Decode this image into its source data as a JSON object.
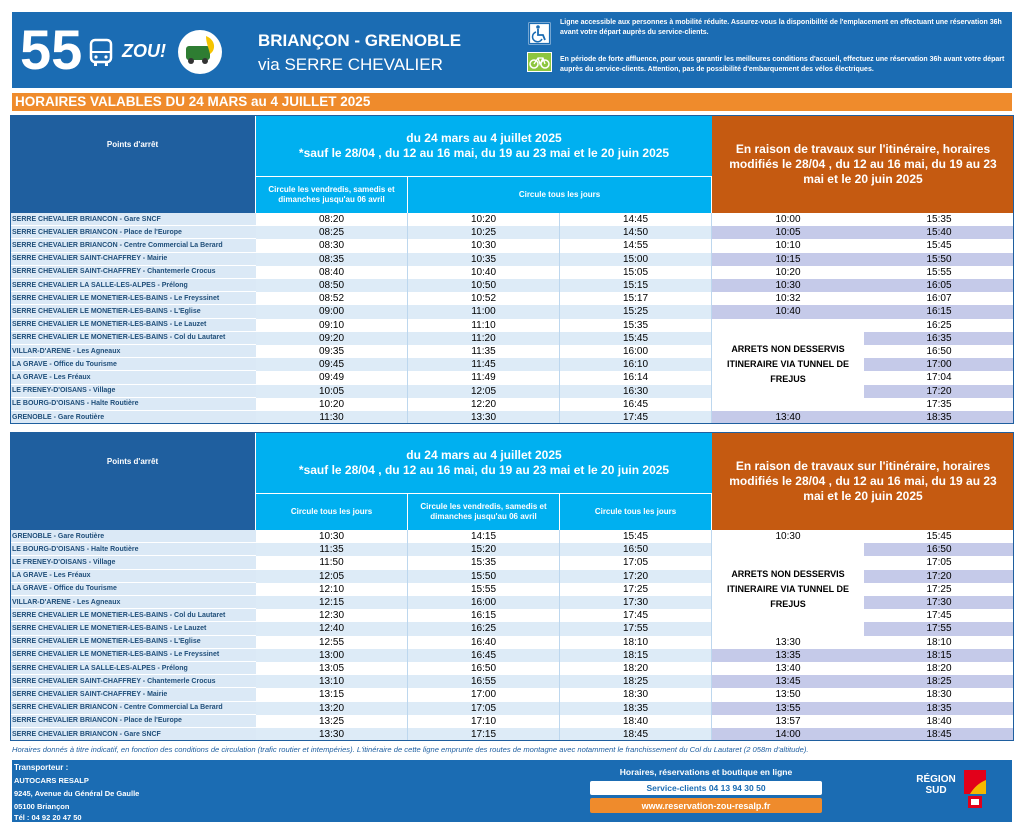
{
  "header": {
    "route_number": "55",
    "brand": "ZOU!",
    "origin_destination": "BRIANÇON - GRENOBLE",
    "via": "via SERRE CHEVALIER",
    "accessibility_notice": "Ligne accessible aux personnes à mobilité réduite. Assurez-vous la disponibilité de l'emplacement en effectuant une réservation 36h avant votre départ auprès du service-clients.",
    "bike_notice": "En période de forte affluence, pour vous garantir les meilleures conditions d'accueil, effectuez une réservation 36h avant votre départ auprès du service-clients. Attention, pas de possibilité d'embarquement des vélos électriques."
  },
  "validity": "HORAIRES VALABLES DU 24 MARS au 4 JUILLET 2025",
  "tables": [
    {
      "stop_header": "Points d'arrêt",
      "period": "du 24 mars au 4 juillet 2025",
      "exceptions": "*sauf le 28/04 , du 12 au 16 mai, du 19 au 23 mai et le 20 juin 2025",
      "works_notice": "En raison de travaux sur l'itinéraire, horaires modifiés le 28/04 , du 12 au 16 mai, du 19 au 23 mai et le 20 juin 2025",
      "column_notes": [
        "Circule les vendredis, samedis et dimanches jusqu'au 06 avril",
        "Circule tous les jours"
      ],
      "not_served": "ARRETS NON DESSERVIS ITINERAIRE VIA TUNNEL DE FREJUS",
      "rows": [
        {
          "stop": "SERRE CHEVALIER BRIANCON - Gare SNCF",
          "times": [
            "08:20",
            "10:20",
            "14:45",
            "10:00",
            "15:35"
          ]
        },
        {
          "stop": "SERRE CHEVALIER BRIANCON - Place de l'Europe",
          "times": [
            "08:25",
            "10:25",
            "14:50",
            "10:05",
            "15:40"
          ]
        },
        {
          "stop": "SERRE CHEVALIER BRIANCON - Centre Commercial La Berard",
          "times": [
            "08:30",
            "10:30",
            "14:55",
            "10:10",
            "15:45"
          ]
        },
        {
          "stop": "SERRE CHEVALIER SAINT-CHAFFREY - Mairie",
          "times": [
            "08:35",
            "10:35",
            "15:00",
            "10:15",
            "15:50"
          ]
        },
        {
          "stop": "SERRE CHEVALIER SAINT-CHAFFREY - Chantemerle Crocus",
          "times": [
            "08:40",
            "10:40",
            "15:05",
            "10:20",
            "15:55"
          ]
        },
        {
          "stop": "SERRE CHEVALIER LA SALLE-LES-ALPES - Prélong",
          "times": [
            "08:50",
            "10:50",
            "15:15",
            "10:30",
            "16:05"
          ]
        },
        {
          "stop": "SERRE CHEVALIER LE MONETIER-LES-BAINS - Le Freyssinet",
          "times": [
            "08:52",
            "10:52",
            "15:17",
            "10:32",
            "16:07"
          ]
        },
        {
          "stop": "SERRE CHEVALIER LE MONETIER-LES-BAINS - L'Eglise",
          "times": [
            "09:00",
            "11:00",
            "15:25",
            "10:40",
            "16:15"
          ]
        },
        {
          "stop": "SERRE CHEVALIER LE MONETIER-LES-BAINS - Le Lauzet",
          "times": [
            "09:10",
            "11:10",
            "15:35",
            null,
            "16:25"
          ]
        },
        {
          "stop": "SERRE CHEVALIER LE MONETIER-LES-BAINS - Col du Lautaret",
          "times": [
            "09:20",
            "11:20",
            "15:45",
            null,
            "16:35"
          ]
        },
        {
          "stop": "VILLAR-D'ARENE - Les Agneaux",
          "times": [
            "09:35",
            "11:35",
            "16:00",
            null,
            "16:50"
          ]
        },
        {
          "stop": "LA GRAVE - Office du Tourisme",
          "times": [
            "09:45",
            "11:45",
            "16:10",
            null,
            "17:00"
          ]
        },
        {
          "stop": "LA GRAVE - Les Fréaux",
          "times": [
            "09:49",
            "11:49",
            "16:14",
            null,
            "17:04"
          ]
        },
        {
          "stop": "LE FRENEY-D'OISANS - Village",
          "times": [
            "10:05",
            "12:05",
            "16:30",
            null,
            "17:20"
          ]
        },
        {
          "stop": "LE BOURG-D'OISANS - Halte Routière",
          "times": [
            "10:20",
            "12:20",
            "16:45",
            null,
            "17:35"
          ]
        },
        {
          "stop": "GRENOBLE - Gare Routière",
          "times": [
            "11:30",
            "13:30",
            "17:45",
            "13:40",
            "18:35"
          ]
        }
      ]
    },
    {
      "stop_header": "Points d'arrêt",
      "period": "du 24 mars au 4 juillet 2025",
      "exceptions": "*sauf le 28/04 , du 12 au 16 mai, du 19 au 23 mai et le 20 juin 2025",
      "works_notice": "En raison de travaux sur l'itinéraire, horaires modifiés le 28/04 , du 12 au 16 mai, du 19 au 23 mai et le 20 juin 2025",
      "column_notes": [
        "Circule tous les jours",
        "Circule les vendredis, samedis et dimanches jusqu'au 06 avril",
        "Circule tous les jours"
      ],
      "not_served": "ARRETS NON DESSERVIS ITINERAIRE VIA TUNNEL DE FREJUS",
      "rows": [
        {
          "stop": "GRENOBLE - Gare Routière",
          "times": [
            "10:30",
            "14:15",
            "15:45",
            "10:30",
            "15:45"
          ]
        },
        {
          "stop": "LE BOURG-D'OISANS - Halte Routière",
          "times": [
            "11:35",
            "15:20",
            "16:50",
            null,
            "16:50"
          ]
        },
        {
          "stop": "LE FRENEY-D'OISANS - Village",
          "times": [
            "11:50",
            "15:35",
            "17:05",
            null,
            "17:05"
          ]
        },
        {
          "stop": "LA GRAVE - Les Fréaux",
          "times": [
            "12:05",
            "15:50",
            "17:20",
            null,
            "17:20"
          ]
        },
        {
          "stop": "LA GRAVE - Office du Tourisme",
          "times": [
            "12:10",
            "15:55",
            "17:25",
            null,
            "17:25"
          ]
        },
        {
          "stop": "VILLAR-D'ARENE - Les Agneaux",
          "times": [
            "12:15",
            "16:00",
            "17:30",
            null,
            "17:30"
          ]
        },
        {
          "stop": "SERRE CHEVALIER LE MONETIER-LES-BAINS - Col du Lautaret",
          "times": [
            "12:30",
            "16:15",
            "17:45",
            null,
            "17:45"
          ]
        },
        {
          "stop": "SERRE CHEVALIER LE MONETIER-LES-BAINS - Le Lauzet",
          "times": [
            "12:40",
            "16:25",
            "17:55",
            null,
            "17:55"
          ]
        },
        {
          "stop": "SERRE CHEVALIER LE MONETIER-LES-BAINS - L'Eglise",
          "times": [
            "12:55",
            "16:40",
            "18:10",
            "13:30",
            "18:10"
          ]
        },
        {
          "stop": "SERRE CHEVALIER LE MONETIER-LES-BAINS - Le Freyssinet",
          "times": [
            "13:00",
            "16:45",
            "18:15",
            "13:35",
            "18:15"
          ]
        },
        {
          "stop": "SERRE CHEVALIER LA SALLE-LES-ALPES - Prélong",
          "times": [
            "13:05",
            "16:50",
            "18:20",
            "13:40",
            "18:20"
          ]
        },
        {
          "stop": "SERRE CHEVALIER SAINT-CHAFFREY - Chantemerle Crocus",
          "times": [
            "13:10",
            "16:55",
            "18:25",
            "13:45",
            "18:25"
          ]
        },
        {
          "stop": "SERRE CHEVALIER SAINT-CHAFFREY - Mairie",
          "times": [
            "13:15",
            "17:00",
            "18:30",
            "13:50",
            "18:30"
          ]
        },
        {
          "stop": "SERRE CHEVALIER BRIANCON - Centre Commercial La Berard",
          "times": [
            "13:20",
            "17:05",
            "18:35",
            "13:55",
            "18:35"
          ]
        },
        {
          "stop": "SERRE CHEVALIER BRIANCON - Place de l'Europe",
          "times": [
            "13:25",
            "17:10",
            "18:40",
            "13:57",
            "18:40"
          ]
        },
        {
          "stop": "SERRE CHEVALIER BRIANCON - Gare SNCF",
          "times": [
            "13:30",
            "17:15",
            "18:45",
            "14:00",
            "18:45"
          ]
        }
      ]
    }
  ],
  "footnote": "Horaires donnés à titre indicatif, en fonction des conditions de circulation (trafic routier et intempéries). L'itinéraire de cette ligne emprunte des routes de montagne avec notamment le franchissement du Col du Lautaret (2 058m d'altitude).",
  "footer": {
    "carrier_label": "Transporteur :",
    "carrier_name": "AUTOCARS RESALP",
    "address": "9245, Avenue du Général De Gaulle",
    "city": "05100 Briançon",
    "phone": "Tél : 04 92 20 47 50",
    "services_title": "Horaires, réservations et boutique en ligne",
    "customer_service": "Service-clients 04 13 94 30 50",
    "website": "www.reservation-zou-resalp.fr",
    "region_logo": "RÉGION SUD"
  }
}
